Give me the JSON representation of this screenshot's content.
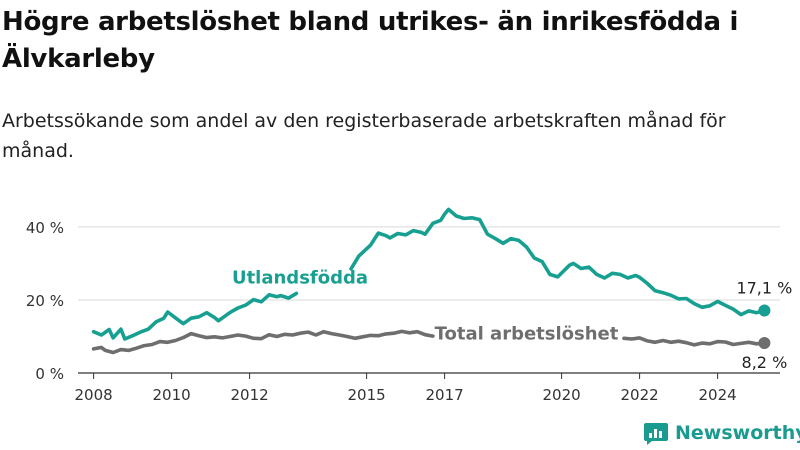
{
  "title": "Högre arbetslöshet bland utrikes- än inrikesfödda i Älvkarleby",
  "subtitle": "Arbetssökande som andel av den registerbaserade arbetskraften månad för månad.",
  "brand": "Newsworthy",
  "colors": {
    "foreign": "#17a091",
    "total": "#6e6e6e",
    "grid": "#d9d9d9",
    "axis": "#555555",
    "brand": "#1a9b8f"
  },
  "chart_data": {
    "type": "line",
    "xlim": [
      2007.6,
      2025.6
    ],
    "ylim": [
      0,
      46
    ],
    "x_ticks": [
      2008,
      2010,
      2012,
      2015,
      2017,
      2020,
      2022,
      2024
    ],
    "y_ticks": [
      0,
      20,
      40
    ],
    "y_tick_labels": [
      "0 %",
      "20 %",
      "40 %"
    ],
    "grid": true,
    "series": [
      {
        "name": "Utlandsfödda",
        "end_label": "17,1 %",
        "segments": [
          [
            [
              2008.0,
              11.3
            ],
            [
              2008.2,
              10.4
            ],
            [
              2008.4,
              11.9
            ],
            [
              2008.5,
              9.6
            ],
            [
              2008.7,
              12.0
            ],
            [
              2008.8,
              9.3
            ],
            [
              2009.0,
              10.2
            ],
            [
              2009.2,
              11.2
            ],
            [
              2009.4,
              12.0
            ],
            [
              2009.6,
              14.0
            ],
            [
              2009.8,
              15.0
            ],
            [
              2009.9,
              16.7
            ],
            [
              2010.1,
              15.1
            ],
            [
              2010.3,
              13.5
            ],
            [
              2010.5,
              15.0
            ],
            [
              2010.7,
              15.4
            ],
            [
              2010.9,
              16.5
            ],
            [
              2011.1,
              15.2
            ],
            [
              2011.2,
              14.3
            ],
            [
              2011.5,
              16.6
            ],
            [
              2011.7,
              17.8
            ],
            [
              2011.9,
              18.6
            ],
            [
              2012.1,
              20.1
            ],
            [
              2012.3,
              19.5
            ],
            [
              2012.5,
              21.4
            ],
            [
              2012.7,
              20.9
            ],
            [
              2012.8,
              21.2
            ],
            [
              2013.0,
              20.5
            ],
            [
              2013.2,
              21.8
            ]
          ],
          [
            [
              2014.6,
              28.5
            ],
            [
              2014.8,
              32.0
            ],
            [
              2015.1,
              35.0
            ],
            [
              2015.3,
              38.3
            ],
            [
              2015.5,
              37.6
            ],
            [
              2015.6,
              37.0
            ],
            [
              2015.8,
              38.2
            ],
            [
              2016.0,
              37.8
            ],
            [
              2016.2,
              39.0
            ],
            [
              2016.4,
              38.5
            ],
            [
              2016.5,
              38.0
            ],
            [
              2016.7,
              41.0
            ],
            [
              2016.9,
              41.8
            ],
            [
              2017.0,
              43.5
            ],
            [
              2017.1,
              44.8
            ],
            [
              2017.3,
              43.0
            ],
            [
              2017.5,
              42.3
            ],
            [
              2017.7,
              42.5
            ],
            [
              2017.9,
              42.0
            ],
            [
              2018.1,
              38.0
            ],
            [
              2018.3,
              36.8
            ],
            [
              2018.5,
              35.5
            ],
            [
              2018.7,
              36.8
            ],
            [
              2018.9,
              36.3
            ],
            [
              2019.1,
              34.5
            ],
            [
              2019.3,
              31.5
            ],
            [
              2019.5,
              30.5
            ],
            [
              2019.7,
              27.0
            ],
            [
              2019.9,
              26.3
            ],
            [
              2020.2,
              29.5
            ],
            [
              2020.3,
              30.0
            ],
            [
              2020.5,
              28.6
            ],
            [
              2020.7,
              29.0
            ],
            [
              2020.9,
              27.0
            ],
            [
              2021.1,
              26.0
            ],
            [
              2021.3,
              27.3
            ],
            [
              2021.5,
              27.0
            ],
            [
              2021.7,
              26.0
            ],
            [
              2021.9,
              26.7
            ],
            [
              2022.0,
              26.2
            ],
            [
              2022.2,
              24.5
            ],
            [
              2022.4,
              22.5
            ],
            [
              2022.6,
              22.0
            ],
            [
              2022.8,
              21.3
            ],
            [
              2023.0,
              20.3
            ],
            [
              2023.2,
              20.4
            ],
            [
              2023.4,
              19.0
            ],
            [
              2023.6,
              18.0
            ],
            [
              2023.8,
              18.4
            ],
            [
              2024.0,
              19.6
            ],
            [
              2024.2,
              18.5
            ],
            [
              2024.4,
              17.5
            ],
            [
              2024.6,
              16.0
            ],
            [
              2024.8,
              17.0
            ],
            [
              2025.0,
              16.5
            ],
            [
              2025.2,
              17.1
            ]
          ]
        ]
      },
      {
        "name": "Total arbetslöshet",
        "end_label": "8,2 %",
        "segments": [
          [
            [
              2008.0,
              6.6
            ],
            [
              2008.2,
              7.0
            ],
            [
              2008.3,
              6.2
            ],
            [
              2008.5,
              5.6
            ],
            [
              2008.7,
              6.4
            ],
            [
              2008.9,
              6.2
            ],
            [
              2009.1,
              6.8
            ],
            [
              2009.3,
              7.5
            ],
            [
              2009.5,
              7.8
            ],
            [
              2009.7,
              8.6
            ],
            [
              2009.9,
              8.4
            ],
            [
              2010.1,
              8.9
            ],
            [
              2010.3,
              9.7
            ],
            [
              2010.5,
              10.8
            ],
            [
              2010.7,
              10.2
            ],
            [
              2010.9,
              9.7
            ],
            [
              2011.1,
              9.9
            ],
            [
              2011.3,
              9.6
            ],
            [
              2011.5,
              10.0
            ],
            [
              2011.7,
              10.4
            ],
            [
              2011.9,
              10.1
            ],
            [
              2012.1,
              9.5
            ],
            [
              2012.3,
              9.4
            ],
            [
              2012.5,
              10.5
            ],
            [
              2012.7,
              10.0
            ],
            [
              2012.9,
              10.6
            ],
            [
              2013.1,
              10.4
            ],
            [
              2013.3,
              10.9
            ],
            [
              2013.5,
              11.2
            ],
            [
              2013.7,
              10.4
            ],
            [
              2013.9,
              11.3
            ],
            [
              2014.1,
              10.8
            ],
            [
              2014.3,
              10.4
            ],
            [
              2014.5,
              10.0
            ],
            [
              2014.7,
              9.5
            ],
            [
              2014.9,
              9.9
            ],
            [
              2015.1,
              10.3
            ],
            [
              2015.3,
              10.2
            ],
            [
              2015.5,
              10.7
            ],
            [
              2015.7,
              10.9
            ],
            [
              2015.9,
              11.4
            ],
            [
              2016.1,
              11.0
            ],
            [
              2016.3,
              11.3
            ],
            [
              2016.5,
              10.5
            ],
            [
              2016.7,
              10.1
            ]
          ],
          [
            [
              2021.6,
              9.5
            ],
            [
              2021.8,
              9.3
            ],
            [
              2022.0,
              9.6
            ],
            [
              2022.2,
              8.8
            ],
            [
              2022.4,
              8.4
            ],
            [
              2022.6,
              8.9
            ],
            [
              2022.8,
              8.4
            ],
            [
              2023.0,
              8.7
            ],
            [
              2023.2,
              8.3
            ],
            [
              2023.4,
              7.7
            ],
            [
              2023.6,
              8.2
            ],
            [
              2023.8,
              8.0
            ],
            [
              2024.0,
              8.6
            ],
            [
              2024.2,
              8.5
            ],
            [
              2024.4,
              7.8
            ],
            [
              2024.6,
              8.1
            ],
            [
              2024.8,
              8.4
            ],
            [
              2025.0,
              8.0
            ],
            [
              2025.2,
              8.2
            ]
          ]
        ]
      }
    ]
  }
}
